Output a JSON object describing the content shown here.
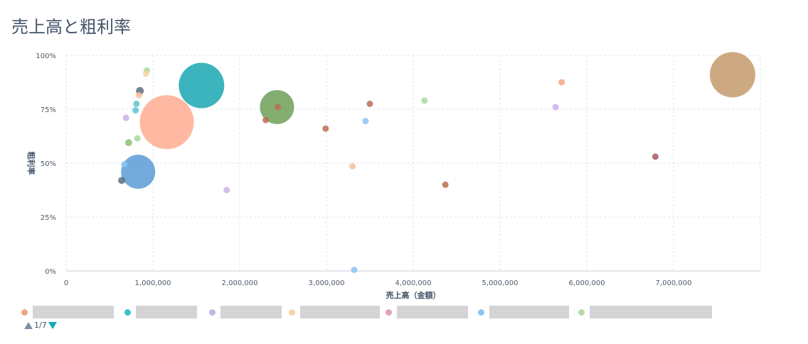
{
  "page": {
    "title": "売上高と粗利率"
  },
  "chart_data": {
    "type": "scatter",
    "title": "売上高と粗利率",
    "xlabel": "売上高（金額）",
    "ylabel": "粗利率",
    "xlim": [
      0,
      8000000
    ],
    "ylim": [
      0,
      1
    ],
    "x_ticks": [
      "0",
      "1,000,000",
      "2,000,000",
      "3,000,000",
      "4,000,000",
      "5,000,000",
      "6,000,000",
      "7,000,000"
    ],
    "y_ticks": [
      "0%",
      "25%",
      "50%",
      "75%",
      "100%"
    ],
    "grid": true,
    "points": [
      {
        "x": 7680000,
        "y": 0.91,
        "size": 32,
        "color": "#c49a6c"
      },
      {
        "x": 1560000,
        "y": 0.86,
        "size": 32,
        "color": "#1aa7b1"
      },
      {
        "x": 1160000,
        "y": 0.69,
        "size": 38,
        "color": "#ffab91"
      },
      {
        "x": 2430000,
        "y": 0.76,
        "size": 24,
        "color": "#6f9f58"
      },
      {
        "x": 830000,
        "y": 0.46,
        "size": 24,
        "color": "#5b9bd5"
      },
      {
        "x": 5710000,
        "y": 0.875,
        "size": 4.5,
        "color": "#f4a582"
      },
      {
        "x": 4130000,
        "y": 0.79,
        "size": 4.5,
        "color": "#a8d8a0"
      },
      {
        "x": 5640000,
        "y": 0.76,
        "size": 4.5,
        "color": "#c7b1e8"
      },
      {
        "x": 6790000,
        "y": 0.53,
        "size": 4.5,
        "color": "#a4585f"
      },
      {
        "x": 3500000,
        "y": 0.775,
        "size": 4.5,
        "color": "#b86e55"
      },
      {
        "x": 2990000,
        "y": 0.66,
        "size": 4.5,
        "color": "#b86e55"
      },
      {
        "x": 2300000,
        "y": 0.7,
        "size": 4.5,
        "color": "#b86e55"
      },
      {
        "x": 2440000,
        "y": 0.76,
        "size": 4.5,
        "color": "#b86e55"
      },
      {
        "x": 3450000,
        "y": 0.695,
        "size": 4.5,
        "color": "#8cc4f2"
      },
      {
        "x": 3300000,
        "y": 0.485,
        "size": 4.5,
        "color": "#f7c09a"
      },
      {
        "x": 4370000,
        "y": 0.4,
        "size": 4.5,
        "color": "#b86e55"
      },
      {
        "x": 1850000,
        "y": 0.375,
        "size": 4.5,
        "color": "#c7b1e8"
      },
      {
        "x": 3320000,
        "y": 0.005,
        "size": 4.5,
        "color": "#8cc4f2"
      },
      {
        "x": 930000,
        "y": 0.93,
        "size": 4.5,
        "color": "#a8d8a0"
      },
      {
        "x": 920000,
        "y": 0.915,
        "size": 4.5,
        "color": "#f7d3a6"
      },
      {
        "x": 850000,
        "y": 0.835,
        "size": 5.5,
        "color": "#5f6e80"
      },
      {
        "x": 840000,
        "y": 0.815,
        "size": 4.5,
        "color": "#f7c09a"
      },
      {
        "x": 810000,
        "y": 0.775,
        "size": 4.5,
        "color": "#5cc6cc"
      },
      {
        "x": 800000,
        "y": 0.745,
        "size": 4.5,
        "color": "#5cc6cc"
      },
      {
        "x": 690000,
        "y": 0.71,
        "size": 4.5,
        "color": "#c7b1e8"
      },
      {
        "x": 820000,
        "y": 0.615,
        "size": 4.5,
        "color": "#a8d8a0"
      },
      {
        "x": 720000,
        "y": 0.595,
        "size": 5,
        "color": "#8fbf73"
      },
      {
        "x": 670000,
        "y": 0.495,
        "size": 4.5,
        "color": "#8cc4f2"
      },
      {
        "x": 640000,
        "y": 0.42,
        "size": 5,
        "color": "#5f6e80"
      }
    ]
  },
  "legend": {
    "items": [
      {
        "color": "#f4a582",
        "label": ""
      },
      {
        "color": "#3cc0c6",
        "label": ""
      },
      {
        "color": "#c7b1e8",
        "label": ""
      },
      {
        "color": "#f7d3a6",
        "label": ""
      },
      {
        "color": "#e0a0c0",
        "label": ""
      },
      {
        "color": "#8cc4f2",
        "label": ""
      },
      {
        "color": "#b5dca6",
        "label": ""
      }
    ],
    "page_indicator": "1/7"
  }
}
